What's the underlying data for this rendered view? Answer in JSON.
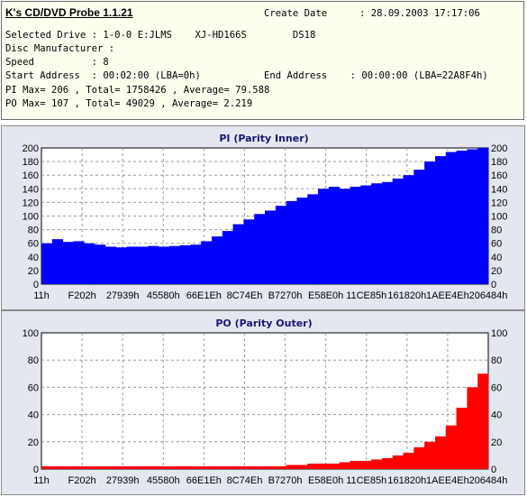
{
  "app": {
    "title": "K's CD/DVD Probe 1.1.21",
    "create_date_label": "Create Date",
    "create_date_value": ": 28.09.2003 17:17:06",
    "selected_drive": "Selected Drive : 1-0-0 E:JLMS    XJ-HD166S        DS18",
    "disc_manufacturer": "Disc Manufacturer :",
    "speed": "Speed          : 8",
    "start_address": "Start Address  : 00:02:00 (LBA=0h)",
    "end_address": "End Address    : 00:00:00 (LBA=22A8F4h)",
    "pi_stats": "PI Max= 206 , Total= 1758426 , Average= 79.588",
    "po_stats": "PO Max= 107 , Total= 49029 , Average= 2.219"
  },
  "colors": {
    "pi": "#0000ff",
    "po": "#ff0000",
    "panel": "#e4e7ef",
    "title": "#141a74"
  },
  "chart_data": [
    {
      "type": "bar",
      "title": "PI (Parity Inner)",
      "ylim": [
        0,
        200
      ],
      "y_ticks": [
        0,
        20,
        40,
        60,
        80,
        100,
        120,
        140,
        160,
        180,
        200
      ],
      "x_tick_labels": [
        "11h",
        "F202h",
        "27939h",
        "45580h",
        "66E1Eh",
        "8C74Eh",
        "B7270h",
        "E58E0h",
        "11CE85h",
        "161820h",
        "1AEE4Eh",
        "206484h"
      ],
      "grid": true,
      "y_axis_right": true,
      "series": [
        {
          "values": [
            60,
            66,
            62,
            63,
            60,
            58,
            55,
            54,
            55,
            55,
            56,
            55,
            56,
            57,
            58,
            63,
            70,
            78,
            88,
            95,
            103,
            108,
            115,
            122,
            127,
            132,
            140,
            143,
            140,
            143,
            145,
            148,
            150,
            155,
            160,
            168,
            180,
            188,
            194,
            196,
            198,
            200
          ]
        }
      ]
    },
    {
      "type": "bar",
      "title": "PO (Parity Outer)",
      "ylim": [
        0,
        100
      ],
      "y_ticks": [
        0,
        20,
        40,
        60,
        80,
        100
      ],
      "x_tick_labels": [
        "11h",
        "F202h",
        "27939h",
        "45580h",
        "66E1Eh",
        "8C74Eh",
        "B7270h",
        "E58E0h",
        "11CE85h",
        "161820h",
        "1AEE4Eh",
        "206484h"
      ],
      "grid": true,
      "y_axis_right": true,
      "series": [
        {
          "values": [
            2,
            2,
            2,
            2,
            2,
            2,
            2,
            2,
            2,
            2,
            2,
            2,
            2,
            2,
            2,
            2,
            2,
            2,
            2,
            2,
            2,
            2,
            2,
            3,
            3,
            4,
            4,
            4,
            5,
            6,
            6,
            7,
            8,
            10,
            12,
            16,
            20,
            24,
            32,
            45,
            60,
            70
          ]
        }
      ]
    }
  ]
}
